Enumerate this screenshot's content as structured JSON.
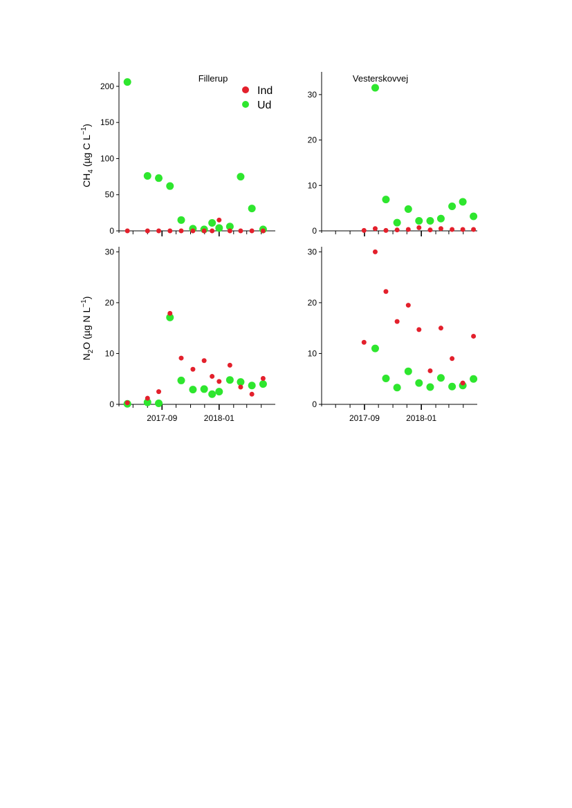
{
  "colors": {
    "Ind": "#e3202c",
    "Ud": "#2ee62e",
    "axis": "#000000"
  },
  "chart_data": [
    {
      "type": "scatter",
      "panel": "top-left",
      "title": "Fillerup",
      "ylabel": {
        "base": "CH",
        "sub": "4",
        "rest": " (µg C L",
        "sup": "−1",
        "close": ")"
      },
      "xlim": [
        "2017-06-01",
        "2018-05-01"
      ],
      "ylim": [
        0,
        220
      ],
      "yticks": [
        0,
        50,
        100,
        150,
        200
      ],
      "legend": {
        "placement": "top-right",
        "entries": [
          "Ind",
          "Ud"
        ]
      },
      "series": [
        {
          "name": "Ind",
          "points": [
            [
              "2017-06-19",
              0
            ],
            [
              "2017-08-01",
              0
            ],
            [
              "2017-08-25",
              0
            ],
            [
              "2017-09-18",
              0
            ],
            [
              "2017-10-12",
              0
            ],
            [
              "2017-11-06",
              0
            ],
            [
              "2017-11-30",
              0
            ],
            [
              "2017-12-17",
              0
            ],
            [
              "2018-01-01",
              15
            ],
            [
              "2018-01-24",
              0
            ],
            [
              "2018-02-16",
              0
            ],
            [
              "2018-03-12",
              0
            ],
            [
              "2018-04-05",
              0
            ]
          ]
        },
        {
          "name": "Ud",
          "points": [
            [
              "2017-06-19",
              206
            ],
            [
              "2017-08-01",
              76
            ],
            [
              "2017-08-25",
              73
            ],
            [
              "2017-09-18",
              62
            ],
            [
              "2017-10-12",
              15
            ],
            [
              "2017-11-06",
              3
            ],
            [
              "2017-11-30",
              2
            ],
            [
              "2017-12-17",
              11
            ],
            [
              "2018-01-01",
              4
            ],
            [
              "2018-01-24",
              6
            ],
            [
              "2018-02-16",
              75
            ],
            [
              "2018-03-12",
              31
            ],
            [
              "2018-04-05",
              2
            ]
          ]
        }
      ]
    },
    {
      "type": "scatter",
      "panel": "top-right",
      "title": "Vesterskovvej",
      "xlim": [
        "2017-06-01",
        "2018-05-01"
      ],
      "ylim": [
        0,
        35
      ],
      "yticks": [
        0,
        10,
        20,
        30
      ],
      "series": [
        {
          "name": "Ind",
          "points": [
            [
              "2017-08-31",
              0.1
            ],
            [
              "2017-09-24",
              0.5
            ],
            [
              "2017-10-17",
              0.1
            ],
            [
              "2017-11-10",
              0.2
            ],
            [
              "2017-12-04",
              0.3
            ],
            [
              "2017-12-27",
              0.7
            ],
            [
              "2018-01-20",
              0.2
            ],
            [
              "2018-02-12",
              0.5
            ],
            [
              "2018-03-08",
              0.3
            ],
            [
              "2018-03-31",
              0.3
            ],
            [
              "2018-04-23",
              0.3
            ]
          ]
        },
        {
          "name": "Ud",
          "points": [
            [
              "2017-09-24",
              31.5
            ],
            [
              "2017-10-17",
              6.9
            ],
            [
              "2017-11-10",
              1.8
            ],
            [
              "2017-12-04",
              4.8
            ],
            [
              "2017-12-27",
              2.2
            ],
            [
              "2018-01-20",
              2.2
            ],
            [
              "2018-02-12",
              2.7
            ],
            [
              "2018-03-08",
              5.4
            ],
            [
              "2018-03-31",
              6.4
            ],
            [
              "2018-04-23",
              3.2
            ]
          ]
        }
      ]
    },
    {
      "type": "scatter",
      "panel": "bottom-left",
      "ylabel": {
        "base": "N",
        "sub": "2",
        "rest": "O (µg N L",
        "sup": "−1",
        "close": ")"
      },
      "xlim": [
        "2017-06-01",
        "2018-05-01"
      ],
      "ylim": [
        0,
        31
      ],
      "yticks": [
        0,
        10,
        20,
        30
      ],
      "xticklabels": {
        "2017-09-01": "2017-09",
        "2018-01-01": "2018-01"
      },
      "series": [
        {
          "name": "Ind",
          "points": [
            [
              "2017-06-19",
              0.3
            ],
            [
              "2017-08-01",
              1.2
            ],
            [
              "2017-08-25",
              2.5
            ],
            [
              "2017-09-18",
              17.9
            ],
            [
              "2017-10-12",
              9.1
            ],
            [
              "2017-11-06",
              6.9
            ],
            [
              "2017-11-30",
              8.6
            ],
            [
              "2017-12-17",
              5.5
            ],
            [
              "2018-01-01",
              4.5
            ],
            [
              "2018-01-24",
              7.7
            ],
            [
              "2018-02-16",
              3.4
            ],
            [
              "2018-03-12",
              2.0
            ],
            [
              "2018-04-05",
              5.1
            ]
          ]
        },
        {
          "name": "Ud",
          "points": [
            [
              "2017-06-19",
              0.1
            ],
            [
              "2017-08-01",
              0.4
            ],
            [
              "2017-08-25",
              0.2
            ],
            [
              "2017-09-18",
              17.1
            ],
            [
              "2017-10-12",
              4.7
            ],
            [
              "2017-11-06",
              2.9
            ],
            [
              "2017-11-30",
              3.0
            ],
            [
              "2017-12-17",
              2.0
            ],
            [
              "2018-01-01",
              2.5
            ],
            [
              "2018-01-24",
              4.8
            ],
            [
              "2018-02-16",
              4.4
            ],
            [
              "2018-03-12",
              3.7
            ],
            [
              "2018-04-05",
              4.0
            ]
          ]
        }
      ]
    },
    {
      "type": "scatter",
      "panel": "bottom-right",
      "xlim": [
        "2017-06-01",
        "2018-05-01"
      ],
      "ylim": [
        0,
        31
      ],
      "yticks": [
        0,
        10,
        20,
        30
      ],
      "xticklabels": {
        "2017-09-01": "2017-09",
        "2018-01-01": "2018-01"
      },
      "series": [
        {
          "name": "Ind",
          "points": [
            [
              "2017-08-31",
              12.2
            ],
            [
              "2017-09-24",
              30.0
            ],
            [
              "2017-10-17",
              22.2
            ],
            [
              "2017-11-10",
              16.3
            ],
            [
              "2017-12-04",
              19.5
            ],
            [
              "2017-12-27",
              14.7
            ],
            [
              "2018-01-20",
              6.6
            ],
            [
              "2018-02-12",
              15.0
            ],
            [
              "2018-03-08",
              9.0
            ],
            [
              "2018-03-31",
              4.2
            ],
            [
              "2018-04-23",
              13.4
            ]
          ]
        },
        {
          "name": "Ud",
          "points": [
            [
              "2017-09-24",
              11.0
            ],
            [
              "2017-10-17",
              5.1
            ],
            [
              "2017-11-10",
              3.3
            ],
            [
              "2017-12-04",
              6.5
            ],
            [
              "2017-12-27",
              4.2
            ],
            [
              "2018-01-20",
              3.4
            ],
            [
              "2018-02-12",
              5.2
            ],
            [
              "2018-03-08",
              3.5
            ],
            [
              "2018-03-31",
              3.7
            ],
            [
              "2018-04-23",
              5.0
            ]
          ]
        }
      ]
    }
  ]
}
